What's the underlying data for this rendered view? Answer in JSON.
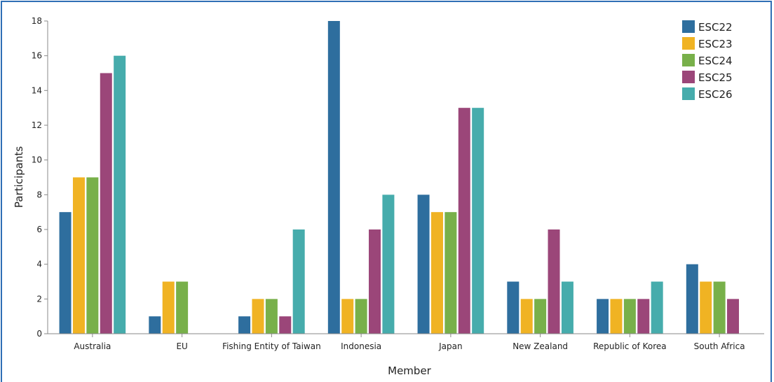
{
  "chart_data": {
    "type": "bar",
    "title": "",
    "xlabel": "Member",
    "ylabel": "Participants",
    "ylim": [
      0,
      18
    ],
    "yticks": [
      0,
      2,
      4,
      6,
      8,
      10,
      12,
      14,
      16,
      18
    ],
    "grid": false,
    "legend_position": "top-right",
    "categories": [
      "Australia",
      "EU",
      "Fishing Entity of Taiwan",
      "Indonesia",
      "Japan",
      "New Zealand",
      "Republic of Korea",
      "South Africa"
    ],
    "series": [
      {
        "name": "ESC22",
        "color": "#2e6e9e",
        "values": [
          7,
          1,
          1,
          18,
          8,
          3,
          2,
          4
        ]
      },
      {
        "name": "ESC23",
        "color": "#f0b323",
        "values": [
          9,
          3,
          2,
          2,
          7,
          2,
          2,
          3
        ]
      },
      {
        "name": "ESC24",
        "color": "#78b04a",
        "values": [
          9,
          3,
          2,
          2,
          7,
          2,
          2,
          3
        ]
      },
      {
        "name": "ESC25",
        "color": "#9b4679",
        "values": [
          15,
          null,
          1,
          6,
          13,
          6,
          2,
          2
        ]
      },
      {
        "name": "ESC26",
        "color": "#46acac",
        "values": [
          16,
          null,
          6,
          8,
          13,
          3,
          3,
          null
        ]
      }
    ]
  }
}
